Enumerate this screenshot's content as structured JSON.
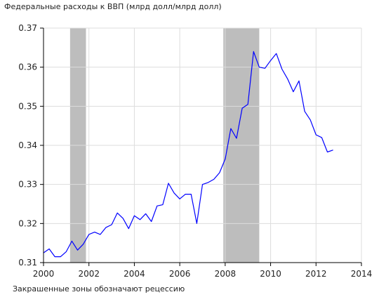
{
  "chart_data": {
    "type": "line",
    "title": "Федеральные расходы к ВВП (млрд долл/млрд долл)",
    "note": "Закрашенные зоны обозначают рецессию",
    "xlabel": "",
    "ylabel": "",
    "xlim": [
      2000,
      2014
    ],
    "ylim": [
      0.31,
      0.37
    ],
    "x_ticks": [
      2000,
      2002,
      2004,
      2006,
      2008,
      2010,
      2012,
      2014
    ],
    "y_ticks": [
      0.31,
      0.32,
      0.33,
      0.34,
      0.35,
      0.36,
      0.37
    ],
    "grid": true,
    "legend": "none",
    "series_color": "#0000ff",
    "recession_color": "#bdbdbd",
    "grid_color": "#dddddd",
    "recessions": [
      [
        2001.17,
        2001.87
      ],
      [
        2007.92,
        2009.5
      ]
    ],
    "series": [
      {
        "x": [
          2000.0,
          2000.25,
          2000.5,
          2000.75,
          2001.0,
          2001.25,
          2001.5,
          2001.75,
          2002.0,
          2002.25,
          2002.5,
          2002.75,
          2003.0,
          2003.25,
          2003.5,
          2003.75,
          2004.0,
          2004.25,
          2004.5,
          2004.75,
          2005.0,
          2005.25,
          2005.5,
          2005.75,
          2006.0,
          2006.25,
          2006.5,
          2006.75,
          2007.0,
          2007.25,
          2007.5,
          2007.75,
          2008.0,
          2008.25,
          2008.5,
          2008.75,
          2009.0,
          2009.25,
          2009.5,
          2009.75,
          2010.0,
          2010.25,
          2010.5,
          2010.75,
          2011.0,
          2011.25,
          2011.5,
          2011.75,
          2012.0,
          2012.25,
          2012.5,
          2012.75
        ],
        "values": [
          0.3125,
          0.3135,
          0.3115,
          0.3115,
          0.3128,
          0.3155,
          0.3132,
          0.3147,
          0.3172,
          0.3178,
          0.3172,
          0.319,
          0.3197,
          0.3227,
          0.3213,
          0.3187,
          0.322,
          0.321,
          0.3225,
          0.3205,
          0.3245,
          0.3248,
          0.3303,
          0.3278,
          0.3263,
          0.3275,
          0.3275,
          0.32,
          0.33,
          0.3305,
          0.3313,
          0.333,
          0.3365,
          0.3443,
          0.3418,
          0.3495,
          0.3505,
          0.364,
          0.36,
          0.3597,
          0.3617,
          0.3635,
          0.3595,
          0.357,
          0.3537,
          0.3565,
          0.3487,
          0.3465,
          0.3427,
          0.342,
          0.3383,
          0.3388
        ]
      }
    ]
  }
}
